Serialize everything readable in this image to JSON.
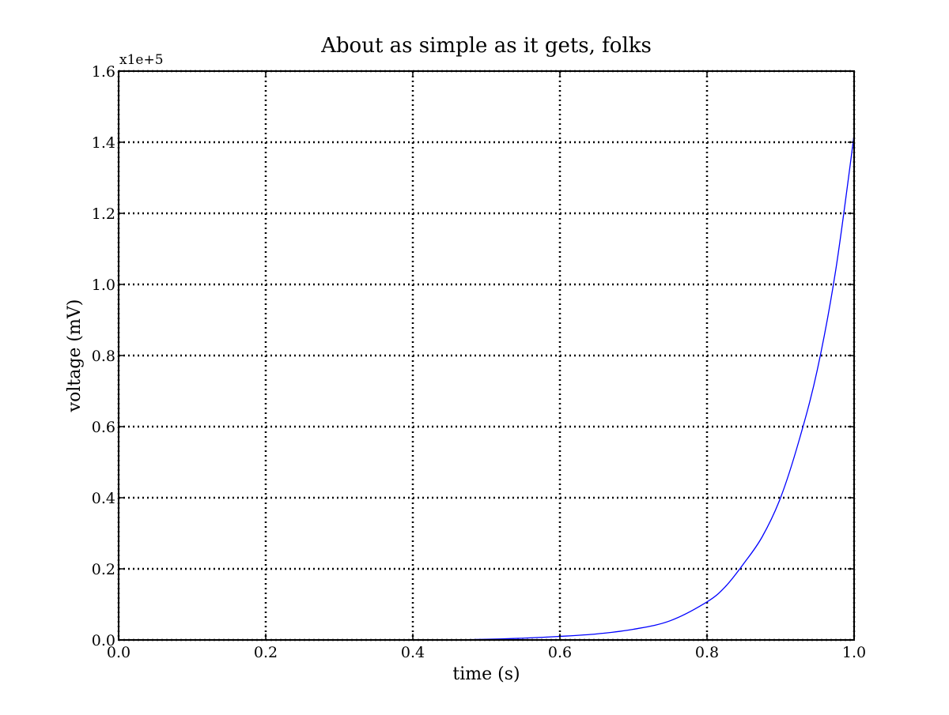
{
  "chart_data": {
    "type": "line",
    "title": "About as simple as it gets, folks",
    "xlabel": "time (s)",
    "ylabel": "voltage (mV)",
    "y_offset_label": "x1e+5",
    "xlim": [
      0.0,
      1.0
    ],
    "ylim": [
      0.0,
      1.6
    ],
    "y_multiplier": 100000,
    "x_ticks": [
      "0.0",
      "0.2",
      "0.4",
      "0.6",
      "0.8",
      "1.0"
    ],
    "y_ticks": [
      "0.0",
      "0.2",
      "0.4",
      "0.6",
      "0.8",
      "1.0",
      "1.2",
      "1.4",
      "1.6"
    ],
    "grid": true,
    "grid_style": "dotted",
    "series": [
      {
        "color": "#0000ff",
        "x": [
          0.0,
          0.4,
          0.5,
          0.55,
          0.6,
          0.65,
          0.7,
          0.75,
          0.8,
          0.825,
          0.85,
          0.875,
          0.9,
          0.925,
          0.95,
          0.975,
          1.0
        ],
        "y": [
          0.0,
          0.0,
          0.002,
          0.005,
          0.01,
          0.017,
          0.03,
          0.054,
          0.107,
          0.15,
          0.215,
          0.29,
          0.4,
          0.56,
          0.76,
          1.04,
          1.42
        ]
      }
    ]
  }
}
